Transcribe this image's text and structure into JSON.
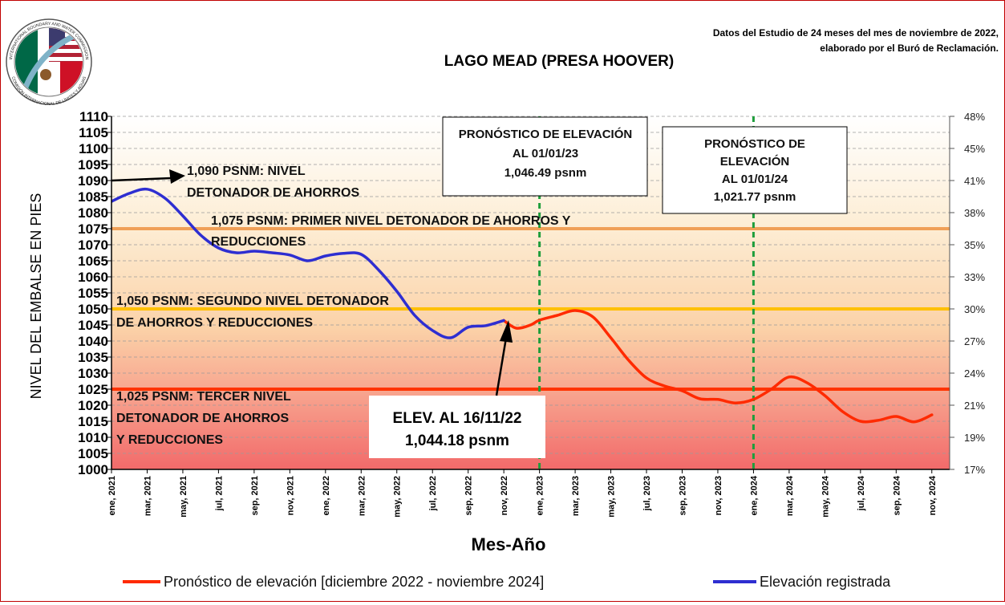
{
  "chart_data": {
    "type": "line",
    "title": "LAGO MEAD (PRESA HOOVER)",
    "source_note": [
      "Datos del Estudio de 24 meses del mes de noviembre de 2022,",
      "elaborado por el Buró de Reclamación."
    ],
    "xlabel": "Mes-Año",
    "ylabel": "NIVEL DEL EMBALSE EN PIES",
    "ylim": [
      1000,
      1110
    ],
    "yticks": [
      1000,
      1005,
      1010,
      1015,
      1020,
      1025,
      1030,
      1035,
      1040,
      1045,
      1050,
      1055,
      1060,
      1065,
      1070,
      1075,
      1080,
      1085,
      1090,
      1095,
      1100,
      1105,
      1110
    ],
    "y2_ticks": [
      {
        "label": "48%",
        "elev": 1110
      },
      {
        "label": "45%",
        "elev": 1100
      },
      {
        "label": "41%",
        "elev": 1090
      },
      {
        "label": "38%",
        "elev": 1080
      },
      {
        "label": "35%",
        "elev": 1070
      },
      {
        "label": "33%",
        "elev": 1060
      },
      {
        "label": "30%",
        "elev": 1050
      },
      {
        "label": "27%",
        "elev": 1040
      },
      {
        "label": "24%",
        "elev": 1030
      },
      {
        "label": "21%",
        "elev": 1020
      },
      {
        "label": "19%",
        "elev": 1010
      },
      {
        "label": "17%",
        "elev": 1000
      }
    ],
    "x_ticks": [
      {
        "label": "ene, 2021",
        "m": 0
      },
      {
        "label": "mar, 2021",
        "m": 2
      },
      {
        "label": "may, 2021",
        "m": 4
      },
      {
        "label": "jul, 2021",
        "m": 6
      },
      {
        "label": "sep, 2021",
        "m": 8
      },
      {
        "label": "nov, 2021",
        "m": 10
      },
      {
        "label": "ene, 2022",
        "m": 12
      },
      {
        "label": "mar, 2022",
        "m": 14
      },
      {
        "label": "may, 2022",
        "m": 16
      },
      {
        "label": "jul, 2022",
        "m": 18
      },
      {
        "label": "sep, 2022",
        "m": 20
      },
      {
        "label": "nov, 2022",
        "m": 22
      },
      {
        "label": "ene, 2023",
        "m": 24
      },
      {
        "label": "mar, 2023",
        "m": 26
      },
      {
        "label": "may, 2023",
        "m": 28
      },
      {
        "label": "jul, 2023",
        "m": 30
      },
      {
        "label": "sep, 2023",
        "m": 32
      },
      {
        "label": "nov, 2023",
        "m": 34
      },
      {
        "label": "ene, 2024",
        "m": 36
      },
      {
        "label": "mar, 2024",
        "m": 38
      },
      {
        "label": "may, 2024",
        "m": 40
      },
      {
        "label": "jul, 2024",
        "m": 42
      },
      {
        "label": "sep, 2024",
        "m": 44
      },
      {
        "label": "nov, 2024",
        "m": 46
      }
    ],
    "series": [
      {
        "name": "Elevación registrada",
        "color": "#2e2ed1",
        "points": [
          [
            0,
            1083.5
          ],
          [
            1,
            1086
          ],
          [
            2,
            1087.3
          ],
          [
            3,
            1084.5
          ],
          [
            4,
            1079
          ],
          [
            5,
            1073
          ],
          [
            6,
            1069
          ],
          [
            7,
            1067.5
          ],
          [
            8,
            1068
          ],
          [
            9,
            1067.5
          ],
          [
            10,
            1066.8
          ],
          [
            11,
            1065
          ],
          [
            12,
            1066.5
          ],
          [
            13,
            1067.3
          ],
          [
            14,
            1067
          ],
          [
            15,
            1062
          ],
          [
            16,
            1055.5
          ],
          [
            17,
            1048
          ],
          [
            18,
            1043.3
          ],
          [
            19,
            1041
          ],
          [
            20,
            1044.3
          ],
          [
            21,
            1044.8
          ],
          [
            22,
            1046.4
          ]
        ]
      },
      {
        "name": "Pronóstico de elevación [diciembre 2022 - noviembre 2024]",
        "color": "#ff2a00",
        "points": [
          [
            22,
            1046.4
          ],
          [
            22.7,
            1044
          ],
          [
            23.5,
            1045
          ],
          [
            24,
            1046.5
          ],
          [
            25,
            1048
          ],
          [
            26,
            1049.5
          ],
          [
            27,
            1047.5
          ],
          [
            28,
            1041
          ],
          [
            29,
            1034
          ],
          [
            30,
            1028.5
          ],
          [
            31,
            1026
          ],
          [
            32,
            1024.5
          ],
          [
            33,
            1022
          ],
          [
            34,
            1021.8
          ],
          [
            35,
            1020.7
          ],
          [
            36,
            1021.8
          ],
          [
            37,
            1025
          ],
          [
            38,
            1028.8
          ],
          [
            39,
            1027
          ],
          [
            40,
            1023
          ],
          [
            41,
            1018
          ],
          [
            42,
            1015
          ],
          [
            43,
            1015.3
          ],
          [
            44,
            1016.5
          ],
          [
            45,
            1014.8
          ],
          [
            46,
            1017
          ]
        ]
      }
    ],
    "reference_lines": [
      {
        "elev": 1075,
        "color": "#f0a057"
      },
      {
        "elev": 1050,
        "color": "#ffc000"
      },
      {
        "elev": 1025,
        "color": "#ff3300"
      }
    ],
    "vertical_lines": [
      {
        "m": 24,
        "color": "#1f9e3c"
      },
      {
        "m": 36,
        "color": "#1f9e3c"
      }
    ],
    "annotations": {
      "a1090": [
        "1,090 PSNM:  NIVEL",
        "DETONADOR DE AHORROS"
      ],
      "a1075": [
        "1,075 PSNM: PRIMER NIVEL DETONADOR DE AHORROS Y",
        "REDUCCIONES"
      ],
      "a1050": [
        "1,050 PSNM: SEGUNDO NIVEL DETONADOR",
        "DE AHORROS Y REDUCCIONES"
      ],
      "a1025": [
        "1,025 PSNM: TERCER NIVEL",
        "DETONADOR DE AHORROS",
        "Y REDUCCIONES"
      ],
      "box2023": [
        "PRONÓSTICO DE ELEVACIÓN",
        "AL 01/01/23",
        "1,046.49 psnm"
      ],
      "box2024": [
        "PRONÓSTICO DE",
        "ELEVACIÓN",
        "AL 01/01/24",
        "1,021.77 psnm"
      ],
      "elev_box": [
        "ELEV. AL 16/11/22",
        "1,044.18 psnm"
      ]
    },
    "legend": {
      "placement": "bottom",
      "items": [
        {
          "label": "Pronóstico de elevación [diciembre 2022 - noviembre 2024]",
          "color": "#ff2a00"
        },
        {
          "label": "Elevación registrada",
          "color": "#2e2ed1"
        }
      ]
    },
    "logo_text": [
      "INTERNATIONAL BOUNDARY AND WATER COMMISSION",
      "COMISIÓN INTERNACIONAL DE LÍMITES Y AGUAS"
    ]
  }
}
